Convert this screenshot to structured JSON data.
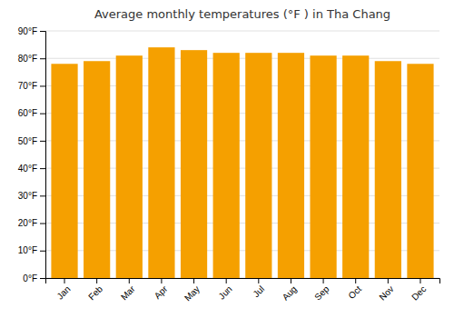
{
  "chart_data": {
    "type": "bar",
    "title": "Average monthly temperatures (°F ) in Tha Chang",
    "categories": [
      "Jan",
      "Feb",
      "Mar",
      "Apr",
      "May",
      "Jun",
      "Jul",
      "Aug",
      "Sep",
      "Oct",
      "Nov",
      "Dec"
    ],
    "values": [
      78,
      79,
      81,
      84,
      83,
      82,
      82,
      82,
      81,
      81,
      79,
      78
    ],
    "color": "#F5A000",
    "ylim": [
      0,
      90
    ],
    "yticks": [
      {
        "value": 0,
        "label": "0°F"
      },
      {
        "value": 10,
        "label": "10°F"
      },
      {
        "value": 20,
        "label": "20°F"
      },
      {
        "value": 30,
        "label": "30°F"
      },
      {
        "value": 40,
        "label": "40°F"
      },
      {
        "value": 50,
        "label": "50°F"
      },
      {
        "value": 60,
        "label": "60°F"
      },
      {
        "value": 70,
        "label": "70°F"
      },
      {
        "value": 80,
        "label": "80°F"
      },
      {
        "value": 90,
        "label": "90°F"
      }
    ],
    "grid": true
  }
}
